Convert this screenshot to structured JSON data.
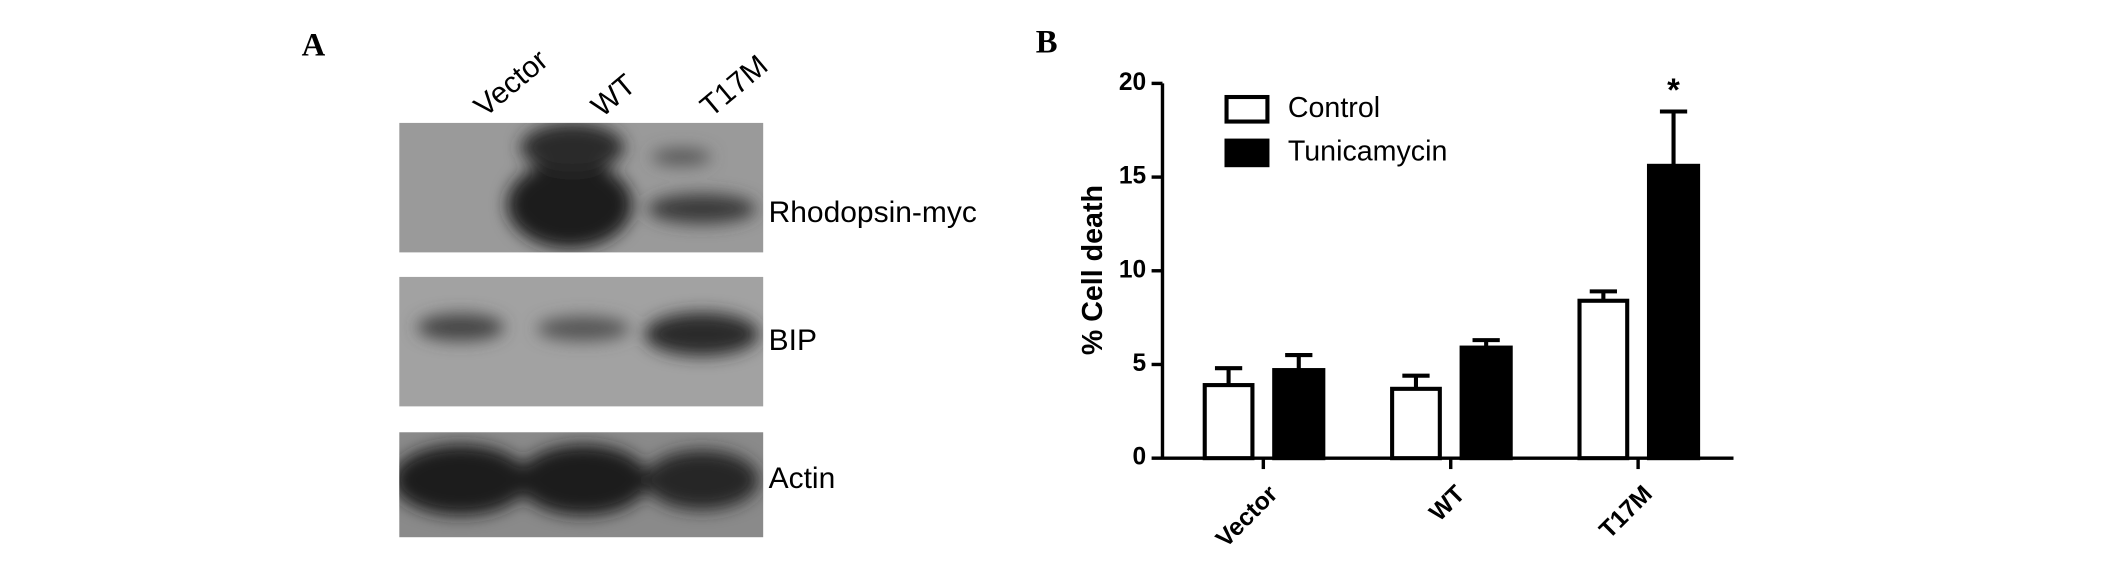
{
  "panel_labels": [
    "A",
    "B"
  ],
  "blot": {
    "lanes": [
      "Vector",
      "WT",
      "T17M"
    ],
    "bands": [
      "Rhodopsin-myc",
      "BIP",
      "Actin"
    ]
  },
  "chart_data": {
    "type": "bar",
    "ylabel": "% Cell death",
    "categories": [
      "Vector",
      "WT",
      "T17M"
    ],
    "series": [
      {
        "name": "Control",
        "color": "#ffffff",
        "values": [
          3.9,
          3.7,
          8.4
        ],
        "errors": [
          0.9,
          0.7,
          0.5
        ]
      },
      {
        "name": "Tunicamycin",
        "color": "#000000",
        "values": [
          4.7,
          5.9,
          15.6
        ],
        "errors": [
          0.8,
          0.4,
          2.9
        ]
      }
    ],
    "ylim": [
      0,
      20
    ],
    "yticks": [
      0,
      5,
      10,
      15,
      20
    ],
    "grid": false,
    "legend": "upper left",
    "annotations": [
      {
        "text": "*",
        "category": "T17M",
        "series": "Tunicamycin"
      }
    ]
  }
}
